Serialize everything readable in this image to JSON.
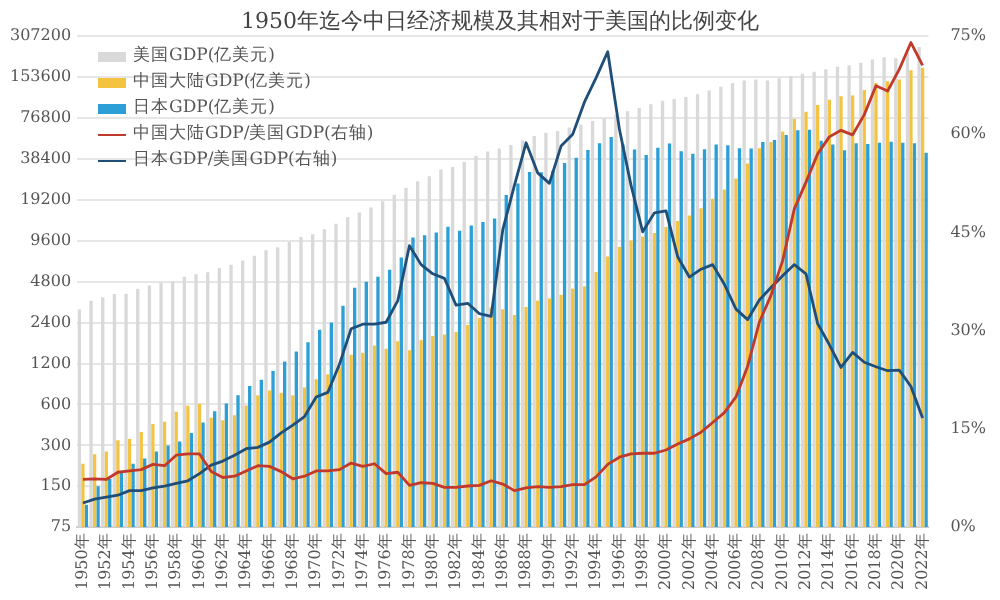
{
  "chart_data": {
    "type": "bar",
    "title": "1950年迄今中日经济规模及其相对于美国的比例变化",
    "categories": [
      "1950年",
      null,
      "1952年",
      null,
      "1954年",
      null,
      "1956年",
      null,
      "1958年",
      null,
      "1960年",
      null,
      "1962年",
      null,
      "1964年",
      null,
      "1966年",
      null,
      "1968年",
      null,
      "1970年",
      null,
      "1972年",
      null,
      "1974年",
      null,
      "1976年",
      null,
      "1978年",
      null,
      "1980年",
      null,
      "1982年",
      null,
      "1984年",
      null,
      "1986年",
      null,
      "1988年",
      null,
      "1990年",
      null,
      "1992年",
      null,
      "1994年",
      null,
      "1996年",
      null,
      "1998年",
      null,
      "2000年",
      null,
      "2002年",
      null,
      "2004年",
      null,
      "2006年",
      null,
      "2008年",
      null,
      "2010年",
      null,
      "2012年",
      null,
      "2014年",
      null,
      "2016年",
      null,
      "2018年",
      null,
      "2020年",
      null,
      "2022年"
    ],
    "series": [
      {
        "name": "美国GDP(亿美元)",
        "color": "#d9d9d9",
        "values": [
          3000,
          3480,
          3680,
          3890,
          3910,
          4260,
          4500,
          4740,
          4810,
          5220,
          5430,
          5630,
          6050,
          6390,
          6860,
          7430,
          8150,
          8610,
          9420,
          10200,
          10730,
          11640,
          12790,
          14250,
          15450,
          16840,
          18730,
          20860,
          23560,
          26320,
          28570,
          32070,
          33440,
          36340,
          40370,
          43390,
          45800,
          48550,
          52360,
          56420,
          59630,
          61580,
          65200,
          68590,
          72870,
          76400,
          81000,
          86090,
          90890,
          96610,
          102850,
          105820,
          109360,
          114580,
          122140,
          130370,
          138150,
          144520,
          147130,
          144490,
          149920,
          155430,
          161970,
          167850,
          175270,
          182380,
          187450,
          195430,
          206120,
          214330,
          210600,
          233150,
          254630
        ]
      },
      {
        "name": "中国大陆GDP(亿美元)",
        "color": "#f5c342",
        "values": [
          220,
          258,
          270,
          328,
          335,
          377,
          431,
          447,
          530,
          587,
          608,
          480,
          460,
          500,
          590,
          700,
          760,
          730,
          700,
          800,
          920,
          1000,
          1130,
          1390,
          1440,
          1630,
          1540,
          1750,
          1500,
          1783,
          1911,
          1958,
          2050,
          2303,
          2599,
          3094,
          3007,
          2729,
          3123,
          3478,
          3609,
          3834,
          4269,
          4447,
          5643,
          7345,
          8637,
          9616,
          10290,
          10940,
          12110,
          13390,
          14710,
          16600,
          19550,
          22860,
          27520,
          35520,
          45980,
          51100,
          61000,
          75500,
          85300,
          95700,
          104400,
          110600,
          112300,
          123100,
          138900,
          142800,
          147200,
          172000,
          179600
        ]
      },
      {
        "name": "日本GDP(亿美元)",
        "color": "#2b9fd6",
        "values": [
          110,
          150,
          170,
          190,
          220,
          240,
          270,
          300,
          320,
          370,
          443,
          535,
          610,
          700,
          820,
          910,
          1060,
          1240,
          1470,
          1720,
          2130,
          2400,
          3190,
          4320,
          4790,
          5220,
          5860,
          7210,
          10130,
          10550,
          11050,
          12180,
          11340,
          12430,
          13180,
          13990,
          20780,
          25320,
          30720,
          30540,
          31330,
          35840,
          39090,
          44540,
          49990,
          55460,
          49230,
          44920,
          40980,
          46360,
          49680,
          43740,
          41820,
          45190,
          48930,
          48310,
          46010,
          45790,
          51060,
          52890,
          57590,
          62330,
          62720,
          52120,
          48970,
          44450,
          50040,
          49310,
          50410,
          51180,
          50480,
          50060,
          42560
        ]
      },
      {
        "name": "中国大陆GDP/美国GDP(右轴)",
        "type": "line",
        "axis": "y2",
        "color": "#c0392b",
        "values": [
          7.3,
          7.4,
          7.3,
          8.4,
          8.6,
          8.8,
          9.6,
          9.4,
          11.0,
          11.2,
          11.2,
          8.5,
          7.6,
          7.8,
          8.6,
          9.4,
          9.3,
          8.5,
          7.4,
          7.8,
          8.6,
          8.6,
          8.8,
          9.8,
          9.3,
          9.7,
          8.2,
          8.4,
          6.4,
          6.8,
          6.7,
          6.1,
          6.1,
          6.3,
          6.4,
          7.1,
          6.6,
          5.6,
          6.0,
          6.2,
          6.1,
          6.2,
          6.5,
          6.5,
          7.7,
          9.6,
          10.7,
          11.2,
          11.3,
          11.3,
          11.8,
          12.7,
          13.5,
          14.5,
          16.0,
          17.5,
          19.9,
          24.6,
          31.3,
          35.4,
          40.7,
          48.6,
          52.7,
          57.0,
          59.6,
          60.6,
          59.9,
          63.0,
          67.4,
          66.6,
          69.9,
          74.0,
          70.5
        ]
      },
      {
        "name": "日本GDP/美国GDP(右轴)",
        "type": "line",
        "axis": "y2",
        "color": "#1f4e79",
        "values": [
          3.7,
          4.3,
          4.6,
          4.9,
          5.6,
          5.6,
          6.0,
          6.3,
          6.7,
          7.1,
          8.2,
          9.5,
          10.1,
          11.0,
          12.0,
          12.2,
          13.0,
          14.4,
          15.6,
          16.9,
          19.9,
          20.6,
          24.9,
          30.3,
          31.0,
          31.0,
          31.3,
          34.6,
          43.0,
          40.1,
          38.7,
          38.0,
          33.9,
          34.2,
          32.6,
          32.2,
          45.4,
          52.2,
          58.7,
          54.1,
          52.5,
          58.2,
          60.0,
          64.9,
          68.6,
          72.6,
          60.8,
          52.2,
          45.1,
          48.0,
          48.3,
          41.3,
          38.2,
          39.4,
          40.1,
          37.1,
          33.3,
          31.7,
          34.7,
          36.6,
          38.4,
          40.1,
          38.7,
          31.1,
          27.9,
          24.4,
          26.7,
          25.2,
          24.5,
          23.9,
          24.0,
          21.5,
          16.7
        ]
      }
    ],
    "log": "y",
    "ylim": [
      75,
      307200
    ],
    "yticks": [
      75,
      150,
      300,
      600,
      1200,
      2400,
      4800,
      9600,
      19200,
      38400,
      76800,
      153600,
      307200
    ],
    "y2lim": [
      0,
      75
    ],
    "y2ticks": [
      {
        "value": 0,
        "label": "0%"
      },
      {
        "value": 15,
        "label": "15%"
      },
      {
        "value": 30,
        "label": "30%"
      },
      {
        "value": 45,
        "label": "45%"
      },
      {
        "value": 60,
        "label": "60%"
      },
      {
        "value": 75,
        "label": "75%"
      }
    ],
    "grid": "y",
    "legend": "top left",
    "marker": "none"
  }
}
